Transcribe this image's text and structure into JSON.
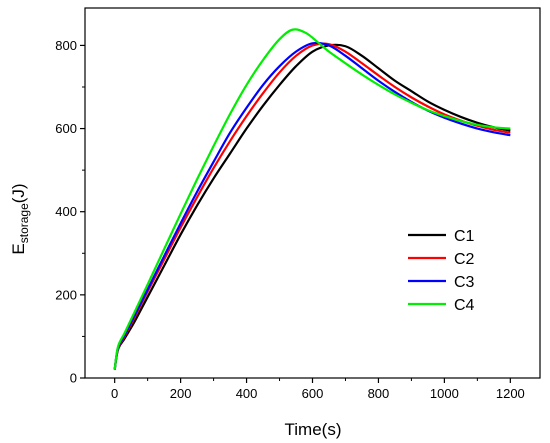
{
  "chart_data": {
    "type": "line",
    "title": "",
    "xlabel": "Time(s)",
    "ylabel_main": "E",
    "ylabel_sub": "storage",
    "ylabel_unit": "(J)",
    "xlim": [
      -90,
      1290
    ],
    "ylim": [
      0,
      890
    ],
    "xticks": [
      0,
      200,
      400,
      600,
      800,
      1000,
      1200
    ],
    "yticks": [
      0,
      200,
      400,
      600,
      800
    ],
    "grid": false,
    "legend_position": "lower-right",
    "series": [
      {
        "name": "C1",
        "color": "#000000",
        "x": [
          0,
          10,
          30,
          60,
          100,
          150,
          200,
          250,
          300,
          350,
          400,
          450,
          500,
          550,
          600,
          650,
          700,
          750,
          800,
          850,
          900,
          950,
          1000,
          1050,
          1100,
          1150,
          1200
        ],
        "y": [
          20,
          68,
          95,
          135,
          195,
          270,
          345,
          415,
          480,
          540,
          600,
          655,
          705,
          750,
          785,
          800,
          798,
          775,
          745,
          715,
          690,
          665,
          645,
          628,
          614,
          603,
          595
        ]
      },
      {
        "name": "C2",
        "color": "#ff0000",
        "x": [
          0,
          10,
          30,
          60,
          100,
          150,
          200,
          250,
          300,
          350,
          400,
          450,
          500,
          550,
          600,
          650,
          700,
          750,
          800,
          850,
          900,
          950,
          1000,
          1050,
          1100,
          1150,
          1200
        ],
        "y": [
          20,
          70,
          100,
          145,
          208,
          285,
          362,
          435,
          505,
          570,
          630,
          685,
          735,
          775,
          800,
          803,
          785,
          757,
          728,
          700,
          675,
          653,
          634,
          619,
          607,
          597,
          590
        ]
      },
      {
        "name": "C3",
        "color": "#0000ff",
        "x": [
          0,
          10,
          30,
          60,
          100,
          150,
          200,
          250,
          300,
          350,
          400,
          450,
          500,
          550,
          600,
          650,
          700,
          750,
          800,
          850,
          900,
          950,
          1000,
          1050,
          1100,
          1150,
          1200
        ],
        "y": [
          20,
          72,
          103,
          150,
          213,
          293,
          372,
          448,
          520,
          590,
          650,
          705,
          750,
          785,
          805,
          800,
          775,
          745,
          715,
          688,
          664,
          643,
          626,
          612,
          600,
          591,
          584
        ]
      },
      {
        "name": "C4",
        "color": "#00ee00",
        "x": [
          0,
          10,
          30,
          60,
          100,
          150,
          200,
          250,
          300,
          350,
          400,
          450,
          500,
          540,
          580,
          620,
          650,
          700,
          750,
          800,
          850,
          900,
          950,
          1000,
          1050,
          1100,
          1150,
          1200
        ],
        "y": [
          20,
          75,
          108,
          158,
          225,
          310,
          395,
          478,
          558,
          635,
          705,
          765,
          815,
          838,
          830,
          805,
          785,
          757,
          730,
          705,
          682,
          662,
          644,
          630,
          618,
          609,
          603,
          600
        ]
      }
    ]
  }
}
